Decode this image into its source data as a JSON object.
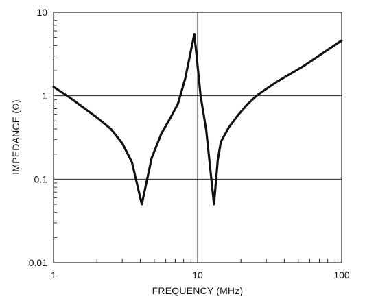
{
  "chart_data": {
    "type": "line",
    "xlabel": "FREQUENCY (MHz)",
    "ylabel": "IMPEDANCE (Ω)",
    "x_scale": "log",
    "y_scale": "log",
    "xlim": [
      1,
      100
    ],
    "ylim": [
      0.01,
      10
    ],
    "x_ticks": [
      {
        "value": 1,
        "label": "1"
      },
      {
        "value": 10,
        "label": "10"
      },
      {
        "value": 100,
        "label": "100"
      }
    ],
    "y_ticks": [
      {
        "value": 0.01,
        "label": "0.01"
      },
      {
        "value": 0.1,
        "label": "0.1"
      },
      {
        "value": 1,
        "label": "1"
      },
      {
        "value": 10,
        "label": "10"
      }
    ],
    "grid": "major decades",
    "legend": "none",
    "series_color": "#111111",
    "series": [
      {
        "x": [
          1,
          1.3,
          2,
          2.5,
          3,
          3.5,
          4.1,
          4.8,
          5.6,
          6.5,
          7.3,
          8.2,
          9.5,
          10.5,
          11.5,
          13.0,
          13.8,
          14.5,
          16.5,
          19,
          22,
          26,
          35,
          55,
          100
        ],
        "y": [
          1.28,
          0.95,
          0.55,
          0.4,
          0.27,
          0.16,
          0.05,
          0.18,
          0.35,
          0.55,
          0.8,
          1.6,
          5.5,
          1.0,
          0.38,
          0.05,
          0.17,
          0.28,
          0.42,
          0.58,
          0.78,
          1.02,
          1.45,
          2.3,
          4.6
        ]
      }
    ]
  }
}
